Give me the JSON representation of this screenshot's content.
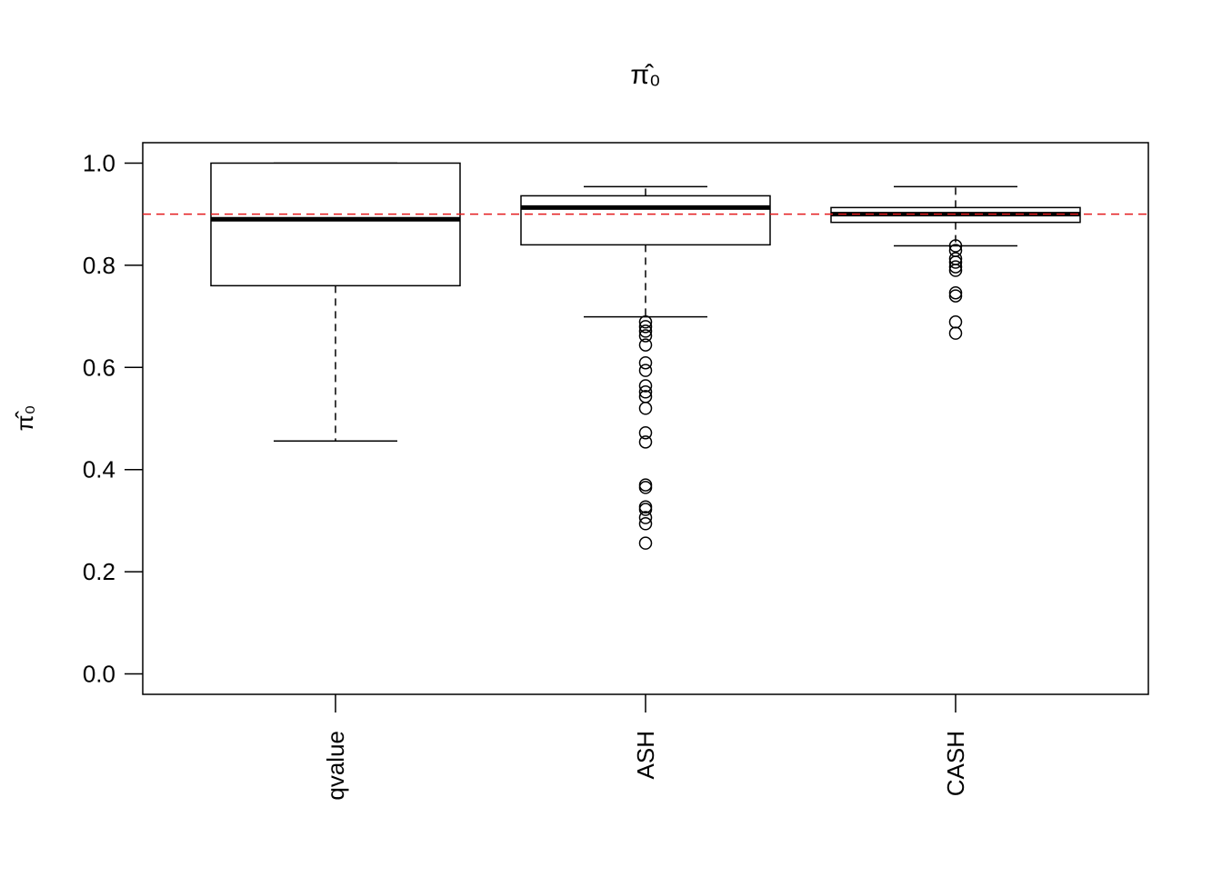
{
  "chart_data": {
    "type": "boxplot",
    "title": "π̂₀",
    "y_label": "π̂₀",
    "categories": [
      "qvalue",
      "ASH",
      "CASH"
    ],
    "boxes": [
      {
        "min": 0.456,
        "q1": 0.76,
        "median": 0.89,
        "q3": 1.0,
        "max": 1.0,
        "outliers": []
      },
      {
        "min": 0.699,
        "q1": 0.84,
        "median": 0.913,
        "q3": 0.936,
        "max": 0.954,
        "outliers": [
          0.689,
          0.68,
          0.671,
          0.662,
          0.644,
          0.609,
          0.594,
          0.564,
          0.552,
          0.543,
          0.52,
          0.472,
          0.454,
          0.37,
          0.365,
          0.327,
          0.322,
          0.306,
          0.294,
          0.256
        ]
      },
      {
        "min": 0.838,
        "q1": 0.884,
        "median": 0.9,
        "q3": 0.913,
        "max": 0.954,
        "outliers": [
          0.838,
          0.829,
          0.813,
          0.806,
          0.797,
          0.79,
          0.746,
          0.74,
          0.689,
          0.667
        ]
      }
    ],
    "color": "#000000",
    "reference_line": 0.9,
    "reference_color": "#e41a1c",
    "ylim": [
      -0.04,
      1.04
    ],
    "yticks": [
      {
        "value": 0,
        "label": "0.0"
      },
      0.2,
      0.4,
      0.6,
      0.8,
      {
        "value": 1,
        "label": "1.0"
      }
    ]
  }
}
